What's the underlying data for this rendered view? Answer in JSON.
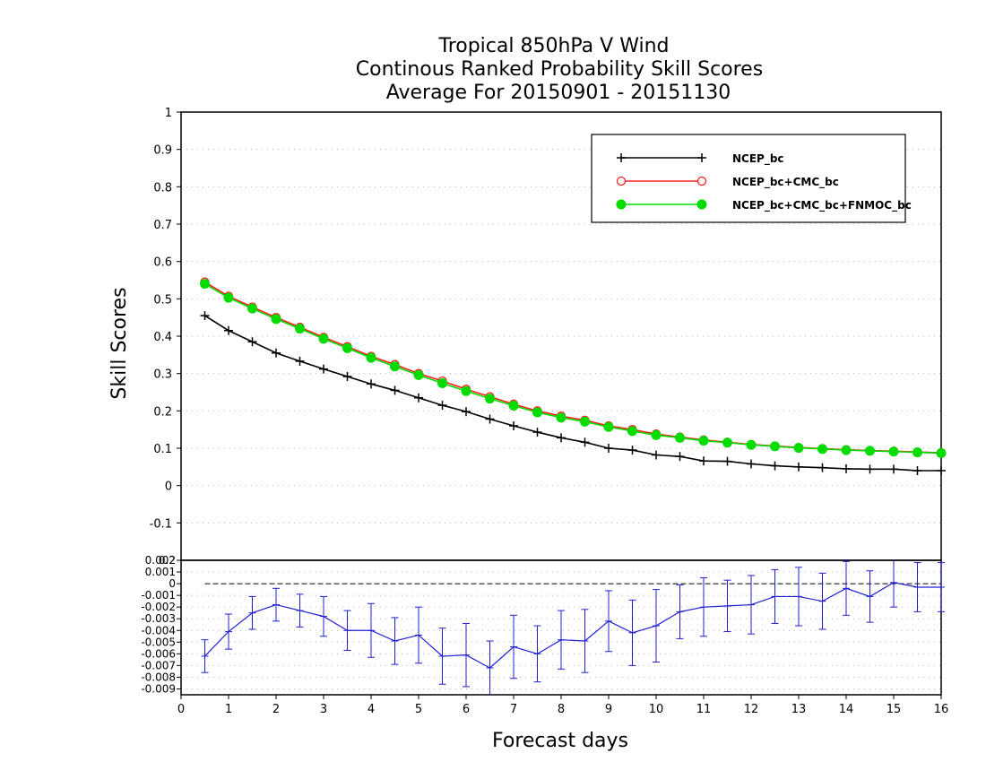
{
  "chart_data": {
    "type": "line",
    "title": [
      "Tropical 850hPa V Wind",
      "Continous Ranked Probability Skill Scores",
      "Average For 20150901 - 20151130"
    ],
    "xlabel": "Forecast days",
    "ylabel": "Skill Scores",
    "xlim": [
      0,
      16
    ],
    "ylim": [
      -0.2,
      1
    ],
    "xticks": [
      0,
      1,
      2,
      3,
      4,
      5,
      6,
      7,
      8,
      9,
      10,
      11,
      12,
      13,
      14,
      15,
      16
    ],
    "yticks": [
      -0.1,
      0,
      0.1,
      0.2,
      0.3,
      0.4,
      0.5,
      0.6,
      0.7,
      0.8,
      0.9,
      1
    ],
    "ytick_labels": [
      "-0.1",
      "0",
      "0.1",
      "0.2",
      "0.3",
      "0.4",
      "0.5",
      "0.6",
      "0.7",
      "0.8",
      "0.9",
      "1"
    ],
    "grid": true,
    "legend_position": "top-right",
    "x": [
      0.5,
      1,
      1.5,
      2,
      2.5,
      3,
      3.5,
      4,
      4.5,
      5,
      5.5,
      6,
      6.5,
      7,
      7.5,
      8,
      8.5,
      9,
      9.5,
      10,
      10.5,
      11,
      11.5,
      12,
      12.5,
      13,
      13.5,
      14,
      14.5,
      15,
      15.5,
      16
    ],
    "series": [
      {
        "name": "NCEP_bc",
        "color": "#000000",
        "marker": "plus",
        "values": [
          0.455,
          0.415,
          0.385,
          0.355,
          0.333,
          0.312,
          0.292,
          0.272,
          0.255,
          0.235,
          0.215,
          0.198,
          0.178,
          0.16,
          0.143,
          0.128,
          0.116,
          0.1,
          0.095,
          0.082,
          0.078,
          0.066,
          0.065,
          0.058,
          0.053,
          0.05,
          0.048,
          0.045,
          0.044,
          0.044,
          0.04,
          0.04
        ]
      },
      {
        "name": "NCEP_bc+CMC_bc",
        "color": "#ff2020",
        "marker": "open-circle",
        "values": [
          0.545,
          0.507,
          0.478,
          0.45,
          0.424,
          0.397,
          0.372,
          0.346,
          0.324,
          0.3,
          0.28,
          0.258,
          0.238,
          0.218,
          0.2,
          0.186,
          0.175,
          0.16,
          0.15,
          0.138,
          0.13,
          0.122,
          0.116,
          0.11,
          0.106,
          0.102,
          0.099,
          0.096,
          0.094,
          0.092,
          0.09,
          0.088
        ]
      },
      {
        "name": "NCEP_bc+CMC_bc+FNMOC_bc",
        "color": "#00dc00",
        "marker": "filled-circle",
        "values": [
          0.54,
          0.503,
          0.474,
          0.446,
          0.42,
          0.393,
          0.368,
          0.342,
          0.319,
          0.296,
          0.274,
          0.253,
          0.233,
          0.214,
          0.196,
          0.182,
          0.171,
          0.157,
          0.146,
          0.135,
          0.128,
          0.12,
          0.115,
          0.109,
          0.105,
          0.101,
          0.098,
          0.095,
          0.093,
          0.091,
          0.089,
          0.087
        ]
      }
    ],
    "difference_panel": {
      "type": "line",
      "ylim": [
        -0.0095,
        0.002
      ],
      "yticks": [
        -0.009,
        -0.008,
        -0.007,
        -0.006,
        -0.005,
        -0.004,
        -0.003,
        -0.002,
        -0.001,
        0,
        0.001,
        0.002
      ],
      "ytick_labels": [
        "-0.009",
        "-0.008",
        "-0.007",
        "-0.006",
        "-0.005",
        "-0.004",
        "-0.003",
        "-0.002",
        "-0.001",
        "0",
        "0.001",
        "0.002"
      ],
      "top_tick_label": "0.2",
      "color": "#2020d0",
      "errorbars": true,
      "x": [
        0.5,
        1,
        1.5,
        2,
        2.5,
        3,
        3.5,
        4,
        4.5,
        5,
        5.5,
        6,
        6.5,
        7,
        7.5,
        8,
        8.5,
        9,
        9.5,
        10,
        10.5,
        11,
        11.5,
        12,
        12.5,
        13,
        13.5,
        14,
        14.5,
        15,
        15.5,
        16
      ],
      "values": [
        -0.0062,
        -0.0041,
        -0.0025,
        -0.0018,
        -0.0023,
        -0.0028,
        -0.004,
        -0.004,
        -0.0049,
        -0.0044,
        -0.0062,
        -0.0061,
        -0.0072,
        -0.0054,
        -0.006,
        -0.0048,
        -0.0049,
        -0.0032,
        -0.0042,
        -0.0036,
        -0.0024,
        -0.002,
        -0.0019,
        -0.0018,
        -0.0011,
        -0.0011,
        -0.0015,
        -0.0004,
        -0.0011,
        0.0001,
        -0.0003,
        -0.0003
      ],
      "error": [
        0.0014,
        0.0015,
        0.0014,
        0.0014,
        0.0014,
        0.0017,
        0.0017,
        0.0023,
        0.002,
        0.0024,
        0.0024,
        0.0027,
        0.0023,
        0.0027,
        0.0024,
        0.0025,
        0.0027,
        0.0026,
        0.0028,
        0.0031,
        0.0023,
        0.0025,
        0.0022,
        0.0025,
        0.0023,
        0.0025,
        0.0024,
        0.0023,
        0.0022,
        0.0021,
        0.0021,
        0.0021
      ]
    }
  }
}
